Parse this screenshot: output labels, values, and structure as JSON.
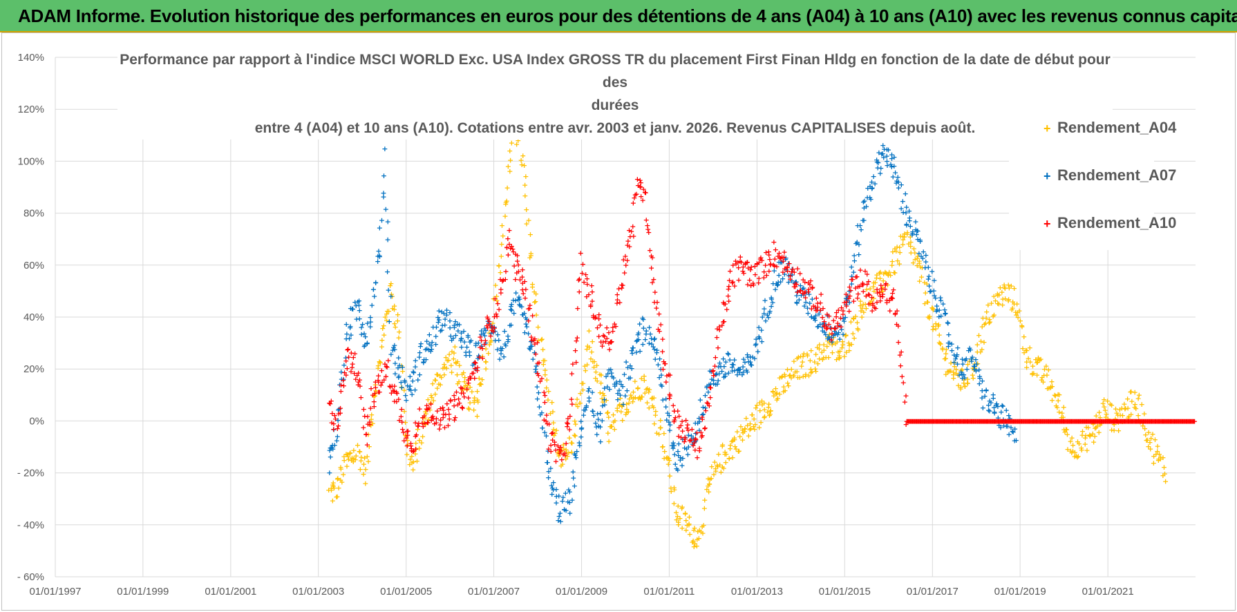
{
  "header": {
    "title": "ADAM Informe. Evolution historique des performances en euros pour des détentions de 4 ans (A04) à 10 ans (A10) avec les revenus connus capitalisés"
  },
  "chart_data": {
    "type": "scatter",
    "title_lines": [
      "Performance par rapport à l'indice MSCI WORLD Exc. USA Index GROSS TR  du placement First Finan Hldg  en fonction de la date de début pour des",
      "durées",
      "entre 4 (A04) et 10 ans (A10).  Cotations entre avr. 2003 et janv. 2026. Revenus CAPITALISES depuis août."
    ],
    "x_tick_labels": [
      "01/01/1997",
      "01/01/1999",
      "01/01/2001",
      "01/01/2003",
      "01/01/2005",
      "01/01/2007",
      "01/01/2009",
      "01/01/2011",
      "01/01/2013",
      "01/01/2015",
      "01/01/2017",
      "01/01/2019",
      "01/01/2021"
    ],
    "y_tick_labels": [
      "140%",
      "120%",
      "100%",
      "80%",
      "60%",
      "40%",
      "20%",
      "0%",
      "- 20%",
      "- 40%",
      "- 60%"
    ],
    "x_range": [
      "1997-01-01",
      "2023-01-01"
    ],
    "ylim": [
      -60,
      140
    ],
    "grid": true,
    "legend_position": "top-right",
    "series": [
      {
        "name": "Rendement_A04",
        "color": "#ffc000",
        "points": [
          [
            "2003-04-01",
            -28
          ],
          [
            "2003-06-01",
            -26
          ],
          [
            "2003-09-01",
            -15
          ],
          [
            "2003-12-01",
            -12
          ],
          [
            "2004-02-01",
            -20
          ],
          [
            "2004-04-01",
            10
          ],
          [
            "2004-06-01",
            25
          ],
          [
            "2004-08-01",
            45
          ],
          [
            "2004-09-01",
            50
          ],
          [
            "2004-11-01",
            35
          ],
          [
            "2005-01-01",
            -8
          ],
          [
            "2005-03-01",
            -18
          ],
          [
            "2005-05-01",
            -5
          ],
          [
            "2005-08-01",
            10
          ],
          [
            "2005-11-01",
            20
          ],
          [
            "2006-02-01",
            25
          ],
          [
            "2006-05-01",
            12
          ],
          [
            "2006-08-01",
            5
          ],
          [
            "2006-10-01",
            20
          ],
          [
            "2007-01-01",
            40
          ],
          [
            "2007-03-01",
            65
          ],
          [
            "2007-05-01",
            95
          ],
          [
            "2007-07-01",
            115
          ],
          [
            "2007-09-01",
            100
          ],
          [
            "2007-11-01",
            65
          ],
          [
            "2008-01-01",
            40
          ],
          [
            "2008-04-01",
            10
          ],
          [
            "2008-07-01",
            -15
          ],
          [
            "2008-10-01",
            -10
          ],
          [
            "2009-01-01",
            10
          ],
          [
            "2009-03-01",
            30
          ],
          [
            "2009-06-01",
            15
          ],
          [
            "2009-09-01",
            -5
          ],
          [
            "2009-12-01",
            5
          ],
          [
            "2010-03-01",
            10
          ],
          [
            "2010-06-01",
            15
          ],
          [
            "2010-09-01",
            5
          ],
          [
            "2010-12-01",
            -10
          ],
          [
            "2011-03-01",
            -35
          ],
          [
            "2011-06-01",
            -40
          ],
          [
            "2011-09-01",
            -45
          ],
          [
            "2011-12-01",
            -25
          ],
          [
            "2012-03-01",
            -15
          ],
          [
            "2012-06-01",
            -10
          ],
          [
            "2012-09-01",
            -5
          ],
          [
            "2012-12-01",
            0
          ],
          [
            "2013-03-01",
            5
          ],
          [
            "2013-06-01",
            10
          ],
          [
            "2013-09-01",
            15
          ],
          [
            "2013-12-01",
            20
          ],
          [
            "2014-03-01",
            22
          ],
          [
            "2014-06-01",
            25
          ],
          [
            "2014-09-01",
            30
          ],
          [
            "2014-12-01",
            25
          ],
          [
            "2015-03-01",
            35
          ],
          [
            "2015-06-01",
            45
          ],
          [
            "2015-09-01",
            50
          ],
          [
            "2015-12-01",
            55
          ],
          [
            "2016-03-01",
            62
          ],
          [
            "2016-06-01",
            70
          ],
          [
            "2016-09-01",
            60
          ],
          [
            "2016-12-01",
            45
          ],
          [
            "2017-03-01",
            30
          ],
          [
            "2017-06-01",
            20
          ],
          [
            "2017-09-01",
            15
          ],
          [
            "2017-12-01",
            20
          ],
          [
            "2018-03-01",
            35
          ],
          [
            "2018-06-01",
            45
          ],
          [
            "2018-09-01",
            50
          ],
          [
            "2018-12-01",
            45
          ],
          [
            "2019-03-01",
            25
          ],
          [
            "2019-06-01",
            20
          ],
          [
            "2019-09-01",
            15
          ],
          [
            "2019-12-01",
            5
          ],
          [
            "2020-03-01",
            -10
          ],
          [
            "2020-06-01",
            -8
          ],
          [
            "2020-09-01",
            -5
          ],
          [
            "2020-12-01",
            5
          ],
          [
            "2021-03-01",
            0
          ],
          [
            "2021-06-01",
            5
          ],
          [
            "2021-09-01",
            8
          ],
          [
            "2021-12-01",
            -5
          ],
          [
            "2022-03-01",
            -15
          ],
          [
            "2022-05-01",
            -20
          ]
        ]
      },
      {
        "name": "Rendement_A07",
        "color": "#0070c0",
        "points": [
          [
            "2003-04-01",
            -15
          ],
          [
            "2003-06-01",
            -5
          ],
          [
            "2003-09-01",
            35
          ],
          [
            "2003-12-01",
            45
          ],
          [
            "2004-02-01",
            30
          ],
          [
            "2004-04-01",
            50
          ],
          [
            "2004-06-01",
            70
          ],
          [
            "2004-07-01",
            100
          ],
          [
            "2004-09-01",
            30
          ],
          [
            "2004-11-01",
            20
          ],
          [
            "2005-01-01",
            12
          ],
          [
            "2005-03-01",
            15
          ],
          [
            "2005-05-01",
            25
          ],
          [
            "2005-08-01",
            30
          ],
          [
            "2005-11-01",
            40
          ],
          [
            "2006-02-01",
            35
          ],
          [
            "2006-05-01",
            30
          ],
          [
            "2006-08-01",
            25
          ],
          [
            "2006-11-01",
            35
          ],
          [
            "2007-01-01",
            38
          ],
          [
            "2007-03-01",
            25
          ],
          [
            "2007-05-01",
            35
          ],
          [
            "2007-07-01",
            45
          ],
          [
            "2007-09-01",
            40
          ],
          [
            "2007-11-01",
            30
          ],
          [
            "2008-01-01",
            15
          ],
          [
            "2008-04-01",
            -20
          ],
          [
            "2008-07-01",
            -35
          ],
          [
            "2008-10-01",
            -30
          ],
          [
            "2009-01-01",
            0
          ],
          [
            "2009-03-01",
            10
          ],
          [
            "2009-06-01",
            -5
          ],
          [
            "2009-09-01",
            20
          ],
          [
            "2009-12-01",
            10
          ],
          [
            "2010-03-01",
            25
          ],
          [
            "2010-06-01",
            35
          ],
          [
            "2010-09-01",
            30
          ],
          [
            "2010-12-01",
            5
          ],
          [
            "2011-03-01",
            -15
          ],
          [
            "2011-06-01",
            -10
          ],
          [
            "2011-09-01",
            0
          ],
          [
            "2011-12-01",
            15
          ],
          [
            "2012-03-01",
            20
          ],
          [
            "2012-06-01",
            22
          ],
          [
            "2012-09-01",
            18
          ],
          [
            "2012-12-01",
            25
          ],
          [
            "2013-03-01",
            40
          ],
          [
            "2013-06-01",
            55
          ],
          [
            "2013-09-01",
            60
          ],
          [
            "2013-12-01",
            50
          ],
          [
            "2014-03-01",
            45
          ],
          [
            "2014-06-01",
            40
          ],
          [
            "2014-09-01",
            35
          ],
          [
            "2014-12-01",
            35
          ],
          [
            "2015-03-01",
            55
          ],
          [
            "2015-06-01",
            80
          ],
          [
            "2015-09-01",
            95
          ],
          [
            "2015-12-01",
            105
          ],
          [
            "2016-03-01",
            95
          ],
          [
            "2016-06-01",
            80
          ],
          [
            "2016-09-01",
            70
          ],
          [
            "2016-12-01",
            55
          ],
          [
            "2017-03-01",
            45
          ],
          [
            "2017-06-01",
            30
          ],
          [
            "2017-09-01",
            20
          ],
          [
            "2017-12-01",
            25
          ],
          [
            "2018-03-01",
            10
          ],
          [
            "2018-06-01",
            5
          ],
          [
            "2018-09-01",
            0
          ],
          [
            "2018-12-01",
            -8
          ]
        ]
      },
      {
        "name": "Rendement_A10",
        "color": "#ff0000",
        "points": [
          [
            "2003-04-01",
            5
          ],
          [
            "2003-06-01",
            0
          ],
          [
            "2003-09-01",
            25
          ],
          [
            "2003-12-01",
            20
          ],
          [
            "2004-02-01",
            -5
          ],
          [
            "2004-04-01",
            10
          ],
          [
            "2004-06-01",
            15
          ],
          [
            "2004-08-01",
            20
          ],
          [
            "2004-10-01",
            10
          ],
          [
            "2005-01-01",
            -5
          ],
          [
            "2005-03-01",
            -8
          ],
          [
            "2005-05-01",
            0
          ],
          [
            "2005-08-01",
            5
          ],
          [
            "2005-11-01",
            0
          ],
          [
            "2006-02-01",
            5
          ],
          [
            "2006-05-01",
            10
          ],
          [
            "2006-08-01",
            20
          ],
          [
            "2006-11-01",
            35
          ],
          [
            "2007-01-01",
            40
          ],
          [
            "2007-03-01",
            50
          ],
          [
            "2007-05-01",
            70
          ],
          [
            "2007-07-01",
            60
          ],
          [
            "2007-09-01",
            55
          ],
          [
            "2007-11-01",
            40
          ],
          [
            "2008-01-01",
            25
          ],
          [
            "2008-04-01",
            -5
          ],
          [
            "2008-07-01",
            -15
          ],
          [
            "2008-10-01",
            0
          ],
          [
            "2009-01-01",
            60
          ],
          [
            "2009-03-01",
            50
          ],
          [
            "2009-06-01",
            35
          ],
          [
            "2009-09-01",
            30
          ],
          [
            "2009-12-01",
            55
          ],
          [
            "2010-03-01",
            75
          ],
          [
            "2010-05-01",
            95
          ],
          [
            "2010-07-01",
            80
          ],
          [
            "2010-09-01",
            50
          ],
          [
            "2010-12-01",
            20
          ],
          [
            "2011-03-01",
            0
          ],
          [
            "2011-06-01",
            -5
          ],
          [
            "2011-09-01",
            -10
          ],
          [
            "2011-12-01",
            10
          ],
          [
            "2012-03-01",
            35
          ],
          [
            "2012-06-01",
            55
          ],
          [
            "2012-09-01",
            60
          ],
          [
            "2012-12-01",
            55
          ],
          [
            "2013-03-01",
            60
          ],
          [
            "2013-06-01",
            65
          ],
          [
            "2013-09-01",
            60
          ],
          [
            "2013-12-01",
            55
          ],
          [
            "2014-03-01",
            50
          ],
          [
            "2014-06-01",
            45
          ],
          [
            "2014-09-01",
            35
          ],
          [
            "2014-12-01",
            40
          ],
          [
            "2015-03-01",
            50
          ],
          [
            "2015-06-01",
            55
          ],
          [
            "2015-09-01",
            45
          ],
          [
            "2015-12-01",
            50
          ],
          [
            "2016-03-01",
            45
          ],
          [
            "2016-06-01",
            0
          ],
          [
            "2017-01-01",
            0
          ],
          [
            "2018-01-01",
            0
          ],
          [
            "2019-01-01",
            0
          ],
          [
            "2020-01-01",
            0
          ],
          [
            "2021-01-01",
            0
          ],
          [
            "2022-01-01",
            0
          ],
          [
            "2022-12-31",
            0
          ]
        ]
      }
    ]
  }
}
